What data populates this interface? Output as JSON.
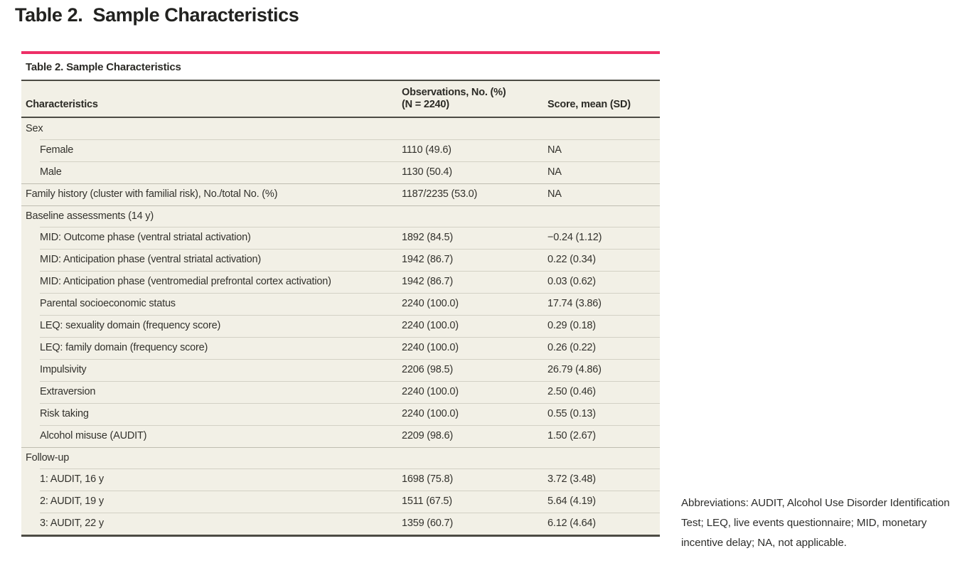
{
  "page_heading": "Table 2.  Sample Characteristics",
  "colors": {
    "accent_pink": "#ee2f67",
    "table_background": "#f2f0e6",
    "rule_dark": "#4c4b44",
    "text": "#33322d"
  },
  "table": {
    "title": "Table 2. Sample Characteristics",
    "columns": {
      "characteristics": "Characteristics",
      "observations_line1": "Observations, No. (%)",
      "observations_line2": "(N = 2240)",
      "score": "Score, mean (SD)"
    },
    "rows": [
      {
        "type": "section",
        "label": "Sex",
        "obs": "",
        "score": ""
      },
      {
        "type": "sub",
        "label": "Female",
        "obs": "1110 (49.6)",
        "score": "NA"
      },
      {
        "type": "sub",
        "label": "Male",
        "obs": "1130 (50.4)",
        "score": "NA"
      },
      {
        "type": "top",
        "label": "Family history (cluster with familial risk), No./total No. (%)",
        "obs": "1187/2235 (53.0)",
        "score": "NA"
      },
      {
        "type": "section",
        "label": "Baseline assessments (14 y)",
        "obs": "",
        "score": ""
      },
      {
        "type": "sub",
        "label": "MID: Outcome phase (ventral striatal activation)",
        "obs": "1892 (84.5)",
        "score": "−0.24 (1.12)"
      },
      {
        "type": "sub",
        "label": "MID: Anticipation phase (ventral striatal activation)",
        "obs": "1942 (86.7)",
        "score": "0.22 (0.34)"
      },
      {
        "type": "sub",
        "label": "MID: Anticipation phase (ventromedial prefrontal cortex activation)",
        "obs": "1942 (86.7)",
        "score": "0.03 (0.62)"
      },
      {
        "type": "sub",
        "label": "Parental socioeconomic status",
        "obs": "2240 (100.0)",
        "score": "17.74 (3.86)"
      },
      {
        "type": "sub",
        "label": "LEQ: sexuality domain (frequency score)",
        "obs": "2240 (100.0)",
        "score": "0.29 (0.18)"
      },
      {
        "type": "sub",
        "label": "LEQ: family domain (frequency score)",
        "obs": "2240 (100.0)",
        "score": "0.26 (0.22)"
      },
      {
        "type": "sub",
        "label": "Impulsivity",
        "obs": "2206 (98.5)",
        "score": "26.79 (4.86)"
      },
      {
        "type": "sub",
        "label": "Extraversion",
        "obs": "2240 (100.0)",
        "score": "2.50 (0.46)"
      },
      {
        "type": "sub",
        "label": "Risk taking",
        "obs": "2240 (100.0)",
        "score": "0.55 (0.13)"
      },
      {
        "type": "sub",
        "label": "Alcohol misuse (AUDIT)",
        "obs": "2209 (98.6)",
        "score": "1.50 (2.67)"
      },
      {
        "type": "section",
        "label": "Follow-up",
        "obs": "",
        "score": ""
      },
      {
        "type": "sub",
        "label": "1: AUDIT, 16 y",
        "obs": "1698 (75.8)",
        "score": "3.72 (3.48)"
      },
      {
        "type": "sub",
        "label": "2: AUDIT, 19 y",
        "obs": "1511 (67.5)",
        "score": "5.64 (4.19)"
      },
      {
        "type": "sub",
        "label": "3: AUDIT, 22 y",
        "obs": "1359 (60.7)",
        "score": "6.12 (4.64)"
      }
    ]
  },
  "footnote": "Abbreviations: AUDIT, Alcohol Use Disorder Identification Test; LEQ, live events questionnaire; MID, monetary incentive delay; NA, not applicable."
}
